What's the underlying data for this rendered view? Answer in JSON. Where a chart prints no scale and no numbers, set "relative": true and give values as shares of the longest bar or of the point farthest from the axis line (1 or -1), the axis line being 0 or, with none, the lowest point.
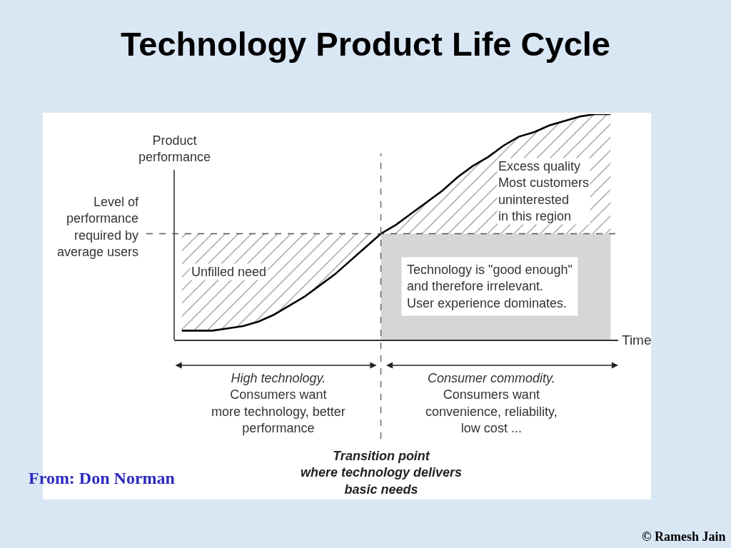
{
  "chart_data": {
    "type": "line",
    "title": "Technology Product Life Cycle",
    "xlabel": "Time",
    "ylabel": "Product performance",
    "relative": true,
    "categories": [
      null,
      null,
      null,
      null,
      null,
      null,
      null,
      null,
      null,
      null,
      null,
      null,
      null,
      null,
      null,
      null,
      null,
      null,
      null,
      null,
      null,
      null,
      null,
      null,
      null,
      null,
      null,
      null,
      null
    ],
    "series": [
      {
        "type": "area",
        "color": "#d6d6d6",
        "values": [
          null,
          null,
          null,
          null,
          null,
          null,
          null,
          null,
          null,
          null,
          null,
          null,
          null,
          0.47,
          0.47,
          0.47,
          0.47,
          0.47,
          0.47,
          0.47,
          0.47,
          0.47,
          0.47,
          0.47,
          0.47,
          0.47,
          0.47,
          0.47,
          0.47
        ]
      },
      {
        "color": "#000000",
        "values": [
          0.04,
          0.04,
          0.04,
          0.05,
          0.06,
          0.08,
          0.11,
          0.15,
          0.19,
          0.24,
          0.29,
          0.35,
          0.41,
          0.47,
          0.51,
          0.56,
          0.61,
          0.66,
          0.72,
          0.77,
          0.81,
          0.86,
          0.9,
          0.92,
          0.95,
          0.97,
          0.99,
          1.0,
          1.0
        ],
        "lower": [
          0.04,
          0.04,
          0.04,
          0.05,
          0.06,
          0.08,
          0.11,
          0.15,
          0.19,
          0.24,
          0.29,
          0.35,
          0.41,
          0.47,
          0.47,
          0.47,
          0.47,
          0.47,
          0.47,
          0.47,
          0.47,
          0.47,
          0.47,
          0.47,
          0.47,
          0.47,
          0.47,
          0.47,
          0.47
        ],
        "upper": [
          0.47,
          0.47,
          0.47,
          0.47,
          0.47,
          0.47,
          0.47,
          0.47,
          0.47,
          0.47,
          0.47,
          0.47,
          0.47,
          0.47,
          0.51,
          0.56,
          0.61,
          0.66,
          0.72,
          0.77,
          0.81,
          0.86,
          0.9,
          0.92,
          0.95,
          0.97,
          0.99,
          1.0,
          1.0
        ]
      }
    ],
    "ref_lines": [
      {
        "axis": "y",
        "value": 0.47,
        "label": "Level of\nperformance\nrequired by\naverage users",
        "line_style": "dashed",
        "color": "#555555"
      }
    ],
    "annotations": [
      "Unfilled need",
      "Excess quality\nMost customers\nuninterested\nin this region",
      "Technology is \"good enough\"\nand therefore irrelevant.\nUser experience dominates.",
      "High technology.\nConsumers want\nmore technology, better\nperformance",
      "Consumer commodity.\nConsumers want\nconvenience, reliability,\nlow cost ...",
      "Transition point\nwhere technology delivers\nbasic needs",
      "From: Don Norman",
      "© Ramesh Jain"
    ]
  }
}
